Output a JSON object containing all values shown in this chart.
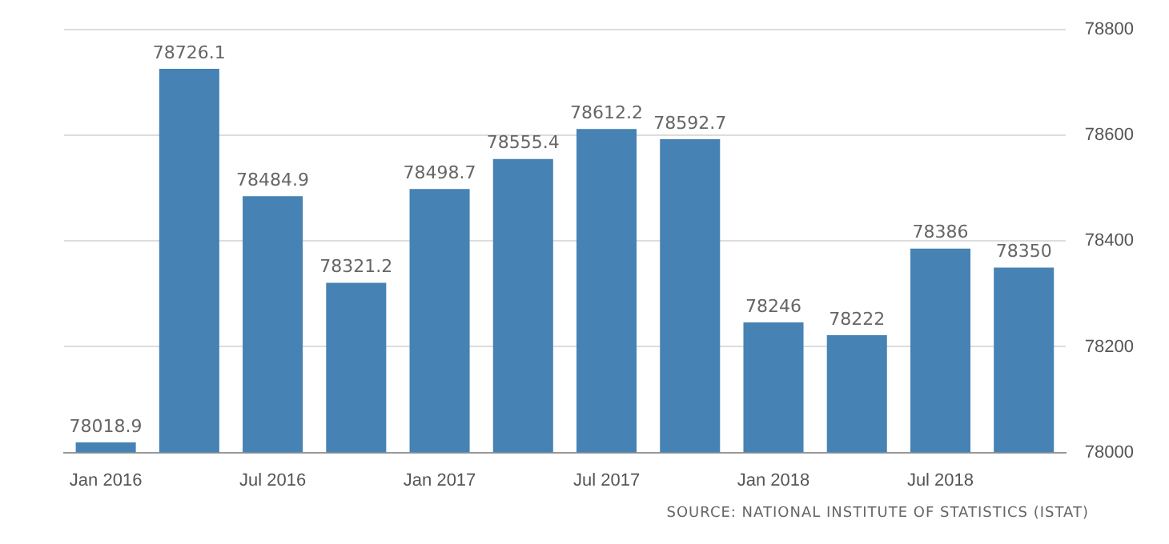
{
  "chart_data": {
    "type": "bar",
    "categories": [
      "Jan 2016",
      null,
      "Jul 2016",
      null,
      "Jan 2017",
      null,
      "Jul 2017",
      null,
      "Jan 2018",
      null,
      "Jul 2018",
      null
    ],
    "values": [
      78018.9,
      78726.1,
      78484.9,
      78321.2,
      78498.7,
      78555.4,
      78612.2,
      78592.7,
      78246,
      78222,
      78386,
      78350
    ],
    "color": "#4682b4",
    "ylim": [
      78000,
      78800
    ],
    "yticks": [
      78000,
      78200,
      78400,
      78600,
      78800
    ],
    "grid": "y",
    "data_labels": true,
    "legend": false,
    "annotations": [
      "SOURCE: NATIONAL INSTITUTE OF STATISTICS (ISTAT)"
    ]
  }
}
